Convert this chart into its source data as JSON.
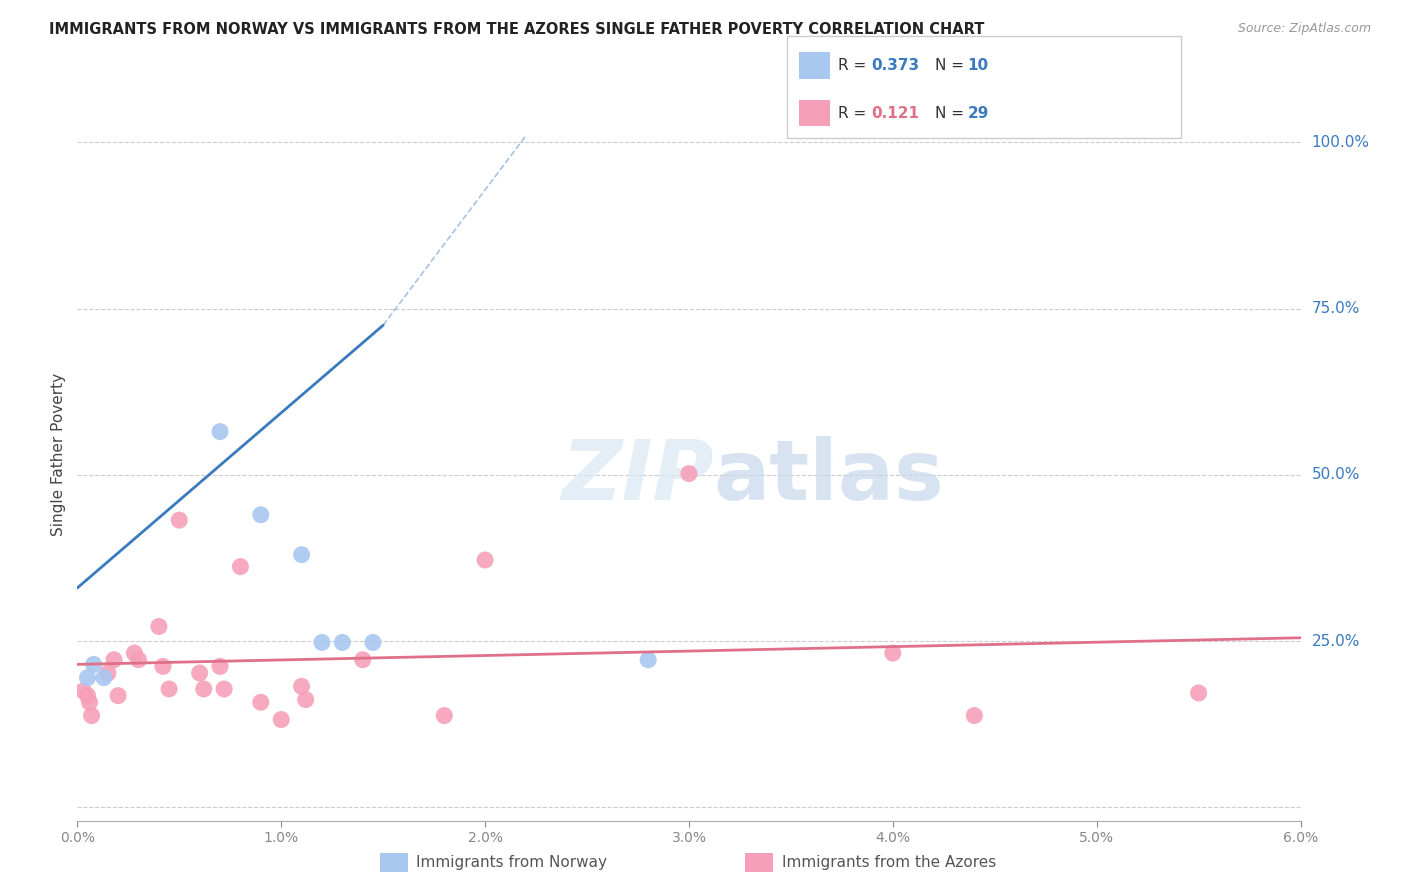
{
  "title": "IMMIGRANTS FROM NORWAY VS IMMIGRANTS FROM THE AZORES SINGLE FATHER POVERTY CORRELATION CHART",
  "source": "Source: ZipAtlas.com",
  "ylabel": "Single Father Poverty",
  "xmin": 0.0,
  "xmax": 0.06,
  "ymin": -0.02,
  "ymax": 1.08,
  "ytick_vals": [
    0.0,
    0.25,
    0.5,
    0.75,
    1.0
  ],
  "ytick_labels": [
    "",
    "25.0%",
    "50.0%",
    "75.0%",
    "100.0%"
  ],
  "xtick_vals": [
    0.0,
    0.01,
    0.02,
    0.03,
    0.04,
    0.05,
    0.06
  ],
  "xtick_labels": [
    "0.0%",
    "1.0%",
    "2.0%",
    "3.0%",
    "4.0%",
    "5.0%",
    "6.0%"
  ],
  "legend_norway_r": "0.373",
  "legend_norway_n": "10",
  "legend_azores_r": "0.121",
  "legend_azores_n": "29",
  "norway_color": "#a8c8f0",
  "azores_color": "#f5a0b8",
  "norway_line_color": "#3a7abf",
  "azores_line_color": "#e07088",
  "norway_points": [
    [
      0.0013,
      0.195
    ],
    [
      0.007,
      0.565
    ],
    [
      0.009,
      0.44
    ],
    [
      0.011,
      0.38
    ],
    [
      0.012,
      0.248
    ],
    [
      0.013,
      0.248
    ],
    [
      0.0145,
      0.248
    ],
    [
      0.0008,
      0.215
    ],
    [
      0.0005,
      0.195
    ],
    [
      0.028,
      0.222
    ]
  ],
  "azores_points": [
    [
      0.0003,
      0.175
    ],
    [
      0.0005,
      0.168
    ],
    [
      0.0006,
      0.158
    ],
    [
      0.0007,
      0.138
    ],
    [
      0.0015,
      0.202
    ],
    [
      0.0018,
      0.222
    ],
    [
      0.002,
      0.168
    ],
    [
      0.0028,
      0.232
    ],
    [
      0.003,
      0.222
    ],
    [
      0.004,
      0.272
    ],
    [
      0.0042,
      0.212
    ],
    [
      0.0045,
      0.178
    ],
    [
      0.005,
      0.432
    ],
    [
      0.006,
      0.202
    ],
    [
      0.0062,
      0.178
    ],
    [
      0.007,
      0.212
    ],
    [
      0.0072,
      0.178
    ],
    [
      0.008,
      0.362
    ],
    [
      0.009,
      0.158
    ],
    [
      0.01,
      0.132
    ],
    [
      0.011,
      0.182
    ],
    [
      0.0112,
      0.162
    ],
    [
      0.014,
      0.222
    ],
    [
      0.018,
      0.138
    ],
    [
      0.02,
      0.372
    ],
    [
      0.03,
      0.502
    ],
    [
      0.04,
      0.232
    ],
    [
      0.044,
      0.138
    ],
    [
      0.055,
      0.172
    ]
  ],
  "norway_trendline_solid": [
    [
      0.0,
      0.33
    ],
    [
      0.015,
      0.725
    ]
  ],
  "norway_trendline_dashed": [
    [
      0.015,
      0.725
    ],
    [
      0.022,
      1.01
    ]
  ],
  "azores_trendline": [
    [
      0.0,
      0.215
    ],
    [
      0.06,
      0.255
    ]
  ],
  "watermark_zip": "ZIP",
  "watermark_atlas": "atlas",
  "background_color": "#ffffff",
  "grid_color": "#cccccc",
  "legend_label_norway": "Immigrants from Norway",
  "legend_label_azores": "Immigrants from the Azores"
}
